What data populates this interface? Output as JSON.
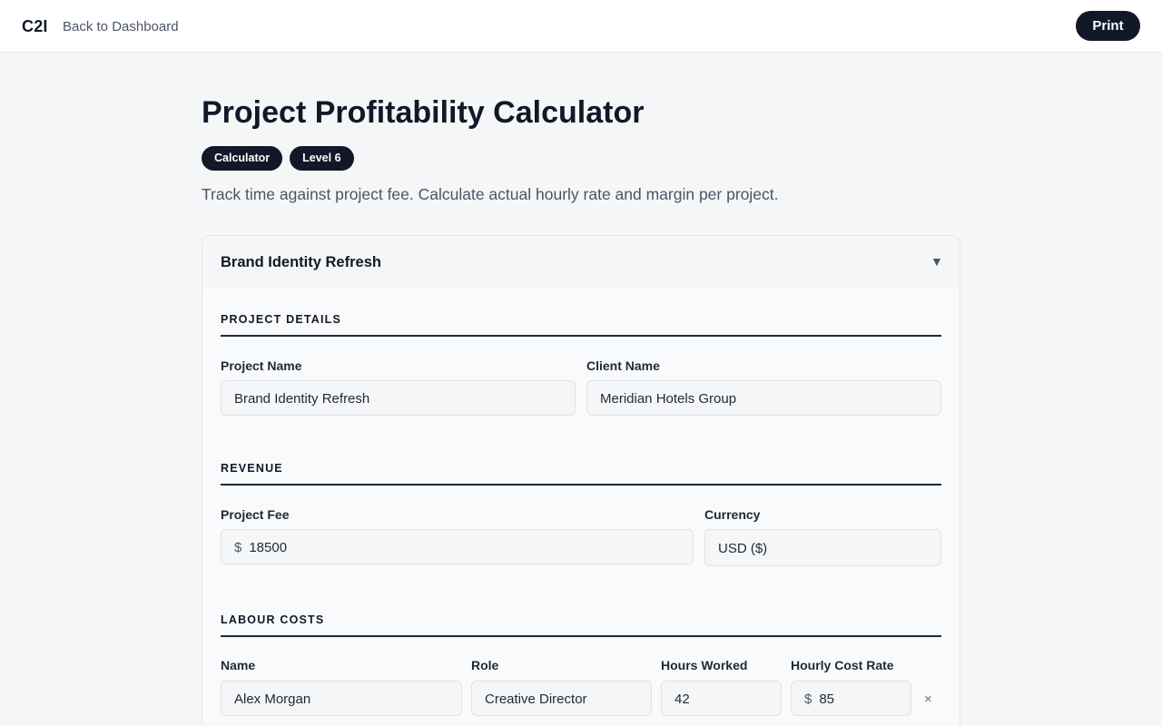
{
  "topbar": {
    "logo": "C2I",
    "back_link": "Back to Dashboard",
    "print_label": "Print"
  },
  "page": {
    "title": "Project Profitability Calculator",
    "badges": [
      "Calculator",
      "Level 6"
    ],
    "subtitle": "Track time against project fee. Calculate actual hourly rate and margin per project."
  },
  "project_card": {
    "title": "Brand Identity Refresh",
    "toggle_icon": "chevron-down-icon",
    "toggle_glyph": "▼",
    "project_details": {
      "section_title": "PROJECT DETAILS",
      "project_name_label": "Project Name",
      "project_name_value": "Brand Identity Refresh",
      "client_name_label": "Client Name",
      "client_name_value": "Meridian Hotels Group"
    },
    "revenue": {
      "section_title": "REVENUE",
      "project_fee_label": "Project Fee",
      "project_fee_prefix": "$",
      "project_fee_value": "18500",
      "currency_label": "Currency",
      "currency_value": "USD ($)"
    },
    "labour_costs": {
      "section_title": "LABOUR COSTS",
      "columns": [
        "Name",
        "Role",
        "Hours Worked",
        "Hourly Cost Rate"
      ],
      "rows": [
        {
          "name": "Alex Morgan",
          "role": "Creative Director",
          "hours": "42",
          "rate_prefix": "$",
          "rate": "85",
          "remove_glyph": "×"
        }
      ]
    }
  },
  "colors": {
    "primary": "#111827",
    "background": "#f5f6f7",
    "muted_text": "#4b5563"
  }
}
